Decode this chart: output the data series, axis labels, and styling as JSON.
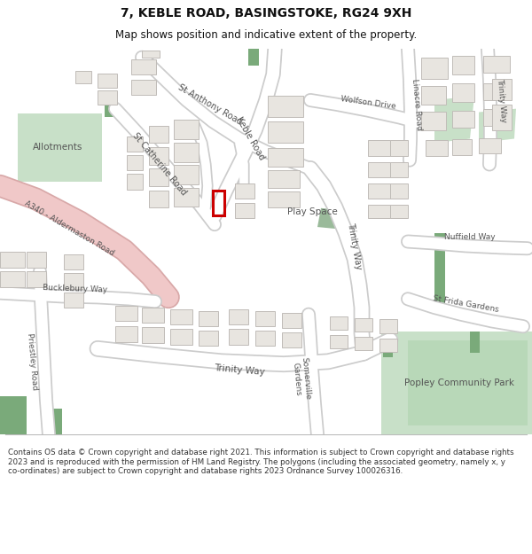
{
  "title_line1": "7, KEBLE ROAD, BASINGSTOKE, RG24 9XH",
  "title_line2": "Map shows position and indicative extent of the property.",
  "footer": "Contains OS data © Crown copyright and database right 2021. This information is subject to Crown copyright and database rights 2023 and is reproduced with the permission of HM Land Registry. The polygons (including the associated geometry, namely x, y co-ordinates) are subject to Crown copyright and database rights 2023 Ordnance Survey 100026316.",
  "bg_color": "#f7f5f2",
  "road_color": "#ffffff",
  "road_outline": "#cccccc",
  "building_color": "#e8e5e0",
  "building_outline": "#c0bcb8",
  "green_dark": "#7aaa7a",
  "green_light": "#c8e0c8",
  "pink_road": "#f0c8c8",
  "pink_outline": "#d8a8a8",
  "marker_color": "#cc0000",
  "text_color": "#666666",
  "title_color": "#111111"
}
